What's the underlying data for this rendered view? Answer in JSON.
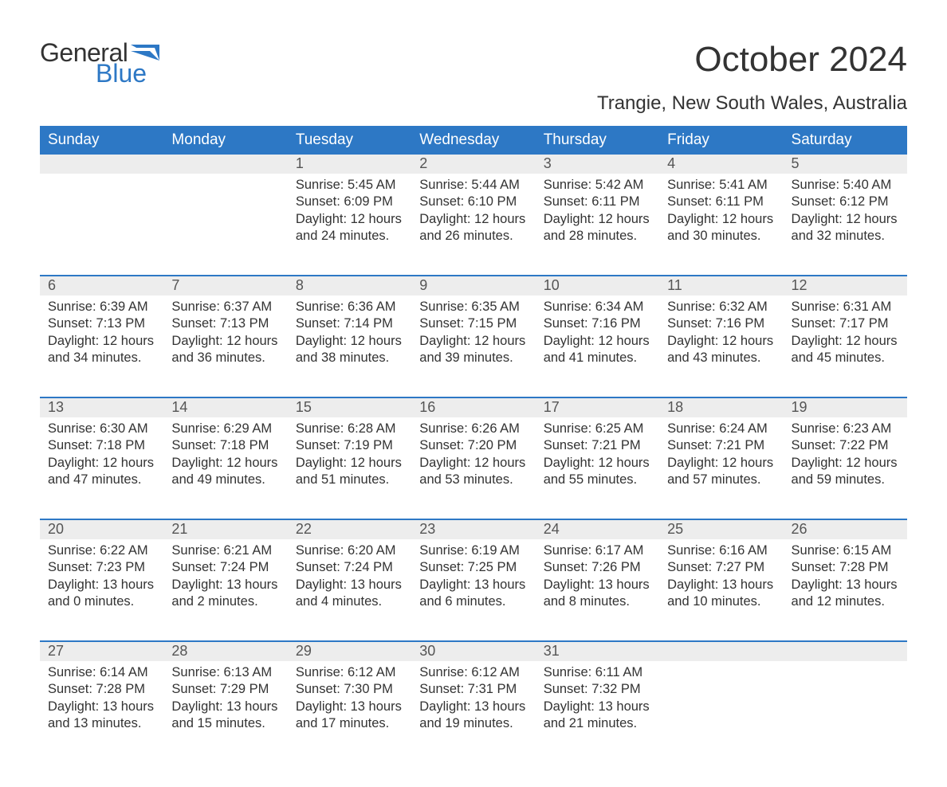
{
  "brand": {
    "word1": "General",
    "word2": "Blue",
    "flag_color": "#2d78c5"
  },
  "title": "October 2024",
  "location": "Trangie, New South Wales, Australia",
  "colors": {
    "header_bg": "#2d78c5",
    "header_fg": "#ffffff",
    "daynum_bg": "#ededed",
    "row_border": "#2d78c5",
    "text": "#333333",
    "background": "#ffffff"
  },
  "day_headers": [
    "Sunday",
    "Monday",
    "Tuesday",
    "Wednesday",
    "Thursday",
    "Friday",
    "Saturday"
  ],
  "weeks": [
    [
      null,
      null,
      {
        "n": "1",
        "sr": "Sunrise: 5:45 AM",
        "ss": "Sunset: 6:09 PM",
        "d1": "Daylight: 12 hours",
        "d2": "and 24 minutes."
      },
      {
        "n": "2",
        "sr": "Sunrise: 5:44 AM",
        "ss": "Sunset: 6:10 PM",
        "d1": "Daylight: 12 hours",
        "d2": "and 26 minutes."
      },
      {
        "n": "3",
        "sr": "Sunrise: 5:42 AM",
        "ss": "Sunset: 6:11 PM",
        "d1": "Daylight: 12 hours",
        "d2": "and 28 minutes."
      },
      {
        "n": "4",
        "sr": "Sunrise: 5:41 AM",
        "ss": "Sunset: 6:11 PM",
        "d1": "Daylight: 12 hours",
        "d2": "and 30 minutes."
      },
      {
        "n": "5",
        "sr": "Sunrise: 5:40 AM",
        "ss": "Sunset: 6:12 PM",
        "d1": "Daylight: 12 hours",
        "d2": "and 32 minutes."
      }
    ],
    [
      {
        "n": "6",
        "sr": "Sunrise: 6:39 AM",
        "ss": "Sunset: 7:13 PM",
        "d1": "Daylight: 12 hours",
        "d2": "and 34 minutes."
      },
      {
        "n": "7",
        "sr": "Sunrise: 6:37 AM",
        "ss": "Sunset: 7:13 PM",
        "d1": "Daylight: 12 hours",
        "d2": "and 36 minutes."
      },
      {
        "n": "8",
        "sr": "Sunrise: 6:36 AM",
        "ss": "Sunset: 7:14 PM",
        "d1": "Daylight: 12 hours",
        "d2": "and 38 minutes."
      },
      {
        "n": "9",
        "sr": "Sunrise: 6:35 AM",
        "ss": "Sunset: 7:15 PM",
        "d1": "Daylight: 12 hours",
        "d2": "and 39 minutes."
      },
      {
        "n": "10",
        "sr": "Sunrise: 6:34 AM",
        "ss": "Sunset: 7:16 PM",
        "d1": "Daylight: 12 hours",
        "d2": "and 41 minutes."
      },
      {
        "n": "11",
        "sr": "Sunrise: 6:32 AM",
        "ss": "Sunset: 7:16 PM",
        "d1": "Daylight: 12 hours",
        "d2": "and 43 minutes."
      },
      {
        "n": "12",
        "sr": "Sunrise: 6:31 AM",
        "ss": "Sunset: 7:17 PM",
        "d1": "Daylight: 12 hours",
        "d2": "and 45 minutes."
      }
    ],
    [
      {
        "n": "13",
        "sr": "Sunrise: 6:30 AM",
        "ss": "Sunset: 7:18 PM",
        "d1": "Daylight: 12 hours",
        "d2": "and 47 minutes."
      },
      {
        "n": "14",
        "sr": "Sunrise: 6:29 AM",
        "ss": "Sunset: 7:18 PM",
        "d1": "Daylight: 12 hours",
        "d2": "and 49 minutes."
      },
      {
        "n": "15",
        "sr": "Sunrise: 6:28 AM",
        "ss": "Sunset: 7:19 PM",
        "d1": "Daylight: 12 hours",
        "d2": "and 51 minutes."
      },
      {
        "n": "16",
        "sr": "Sunrise: 6:26 AM",
        "ss": "Sunset: 7:20 PM",
        "d1": "Daylight: 12 hours",
        "d2": "and 53 minutes."
      },
      {
        "n": "17",
        "sr": "Sunrise: 6:25 AM",
        "ss": "Sunset: 7:21 PM",
        "d1": "Daylight: 12 hours",
        "d2": "and 55 minutes."
      },
      {
        "n": "18",
        "sr": "Sunrise: 6:24 AM",
        "ss": "Sunset: 7:21 PM",
        "d1": "Daylight: 12 hours",
        "d2": "and 57 minutes."
      },
      {
        "n": "19",
        "sr": "Sunrise: 6:23 AM",
        "ss": "Sunset: 7:22 PM",
        "d1": "Daylight: 12 hours",
        "d2": "and 59 minutes."
      }
    ],
    [
      {
        "n": "20",
        "sr": "Sunrise: 6:22 AM",
        "ss": "Sunset: 7:23 PM",
        "d1": "Daylight: 13 hours",
        "d2": "and 0 minutes."
      },
      {
        "n": "21",
        "sr": "Sunrise: 6:21 AM",
        "ss": "Sunset: 7:24 PM",
        "d1": "Daylight: 13 hours",
        "d2": "and 2 minutes."
      },
      {
        "n": "22",
        "sr": "Sunrise: 6:20 AM",
        "ss": "Sunset: 7:24 PM",
        "d1": "Daylight: 13 hours",
        "d2": "and 4 minutes."
      },
      {
        "n": "23",
        "sr": "Sunrise: 6:19 AM",
        "ss": "Sunset: 7:25 PM",
        "d1": "Daylight: 13 hours",
        "d2": "and 6 minutes."
      },
      {
        "n": "24",
        "sr": "Sunrise: 6:17 AM",
        "ss": "Sunset: 7:26 PM",
        "d1": "Daylight: 13 hours",
        "d2": "and 8 minutes."
      },
      {
        "n": "25",
        "sr": "Sunrise: 6:16 AM",
        "ss": "Sunset: 7:27 PM",
        "d1": "Daylight: 13 hours",
        "d2": "and 10 minutes."
      },
      {
        "n": "26",
        "sr": "Sunrise: 6:15 AM",
        "ss": "Sunset: 7:28 PM",
        "d1": "Daylight: 13 hours",
        "d2": "and 12 minutes."
      }
    ],
    [
      {
        "n": "27",
        "sr": "Sunrise: 6:14 AM",
        "ss": "Sunset: 7:28 PM",
        "d1": "Daylight: 13 hours",
        "d2": "and 13 minutes."
      },
      {
        "n": "28",
        "sr": "Sunrise: 6:13 AM",
        "ss": "Sunset: 7:29 PM",
        "d1": "Daylight: 13 hours",
        "d2": "and 15 minutes."
      },
      {
        "n": "29",
        "sr": "Sunrise: 6:12 AM",
        "ss": "Sunset: 7:30 PM",
        "d1": "Daylight: 13 hours",
        "d2": "and 17 minutes."
      },
      {
        "n": "30",
        "sr": "Sunrise: 6:12 AM",
        "ss": "Sunset: 7:31 PM",
        "d1": "Daylight: 13 hours",
        "d2": "and 19 minutes."
      },
      {
        "n": "31",
        "sr": "Sunrise: 6:11 AM",
        "ss": "Sunset: 7:32 PM",
        "d1": "Daylight: 13 hours",
        "d2": "and 21 minutes."
      },
      null,
      null
    ]
  ]
}
